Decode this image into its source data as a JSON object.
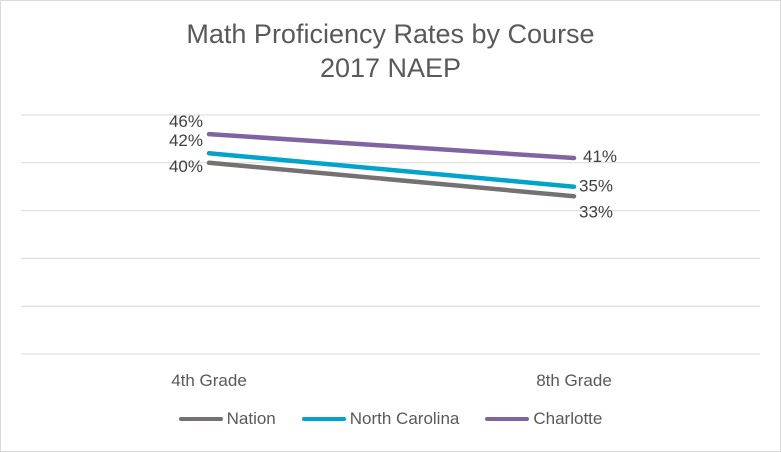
{
  "chart_data": {
    "type": "line",
    "title": "Math Proficiency Rates by Course",
    "subtitle": "2017 NAEP",
    "categories": [
      "4th Grade",
      "8th Grade"
    ],
    "ylim": [
      0,
      50
    ],
    "grid": true,
    "legend_position": "bottom",
    "series": [
      {
        "name": "Nation",
        "values": [
          40,
          33
        ],
        "labels": [
          "40%",
          "33%"
        ],
        "color": "#767171"
      },
      {
        "name": "North Carolina",
        "values": [
          42,
          35
        ],
        "labels": [
          "42%",
          "35%"
        ],
        "color": "#00a3c9"
      },
      {
        "name": "Charlotte",
        "values": [
          46,
          41
        ],
        "labels": [
          "46%",
          "41%"
        ],
        "color": "#8064a2"
      }
    ]
  }
}
